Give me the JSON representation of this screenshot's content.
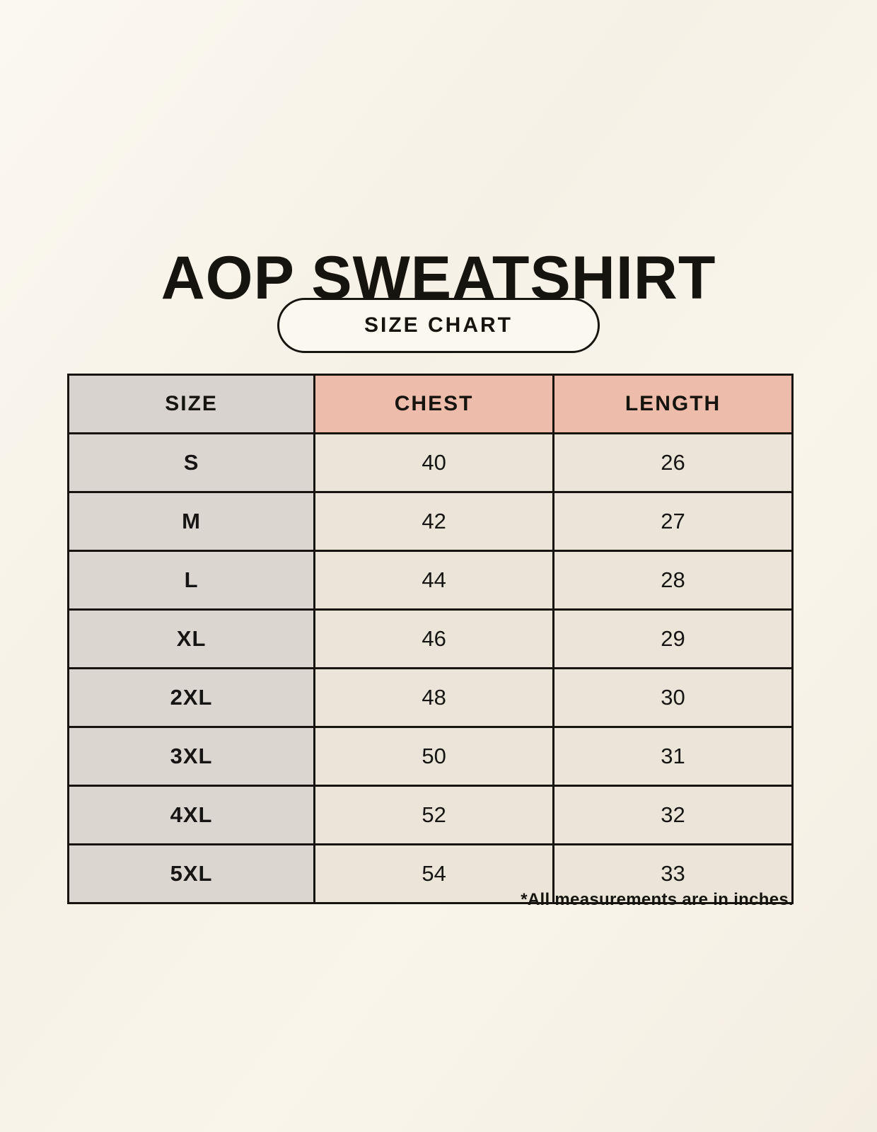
{
  "title": "AOP SWEATSHIRT",
  "size_chart_label": "SIZE CHART",
  "footnote": "*All measurements are in inches.",
  "colors": {
    "background": "#f7f3e9",
    "size_column_bg": "#dcd6d1",
    "header_accent_bg": "#eebcab",
    "value_cell_bg": "#eae4d9",
    "border": "#171410",
    "text": "#16140f"
  },
  "chart_data": {
    "type": "table",
    "title": "AOP SWEATSHIRT",
    "subtitle": "SIZE CHART",
    "units": "inches",
    "note": "*All measurements are in inches.",
    "columns": [
      "SIZE",
      "CHEST",
      "LENGTH"
    ],
    "rows": [
      {
        "size": "S",
        "chest": 40,
        "length": 26
      },
      {
        "size": "M",
        "chest": 42,
        "length": 27
      },
      {
        "size": "L",
        "chest": 44,
        "length": 28
      },
      {
        "size": "XL",
        "chest": 46,
        "length": 29
      },
      {
        "size": "2XL",
        "chest": 48,
        "length": 30
      },
      {
        "size": "3XL",
        "chest": 50,
        "length": 31
      },
      {
        "size": "4XL",
        "chest": 52,
        "length": 32
      },
      {
        "size": "5XL",
        "chest": 54,
        "length": 33
      }
    ]
  }
}
